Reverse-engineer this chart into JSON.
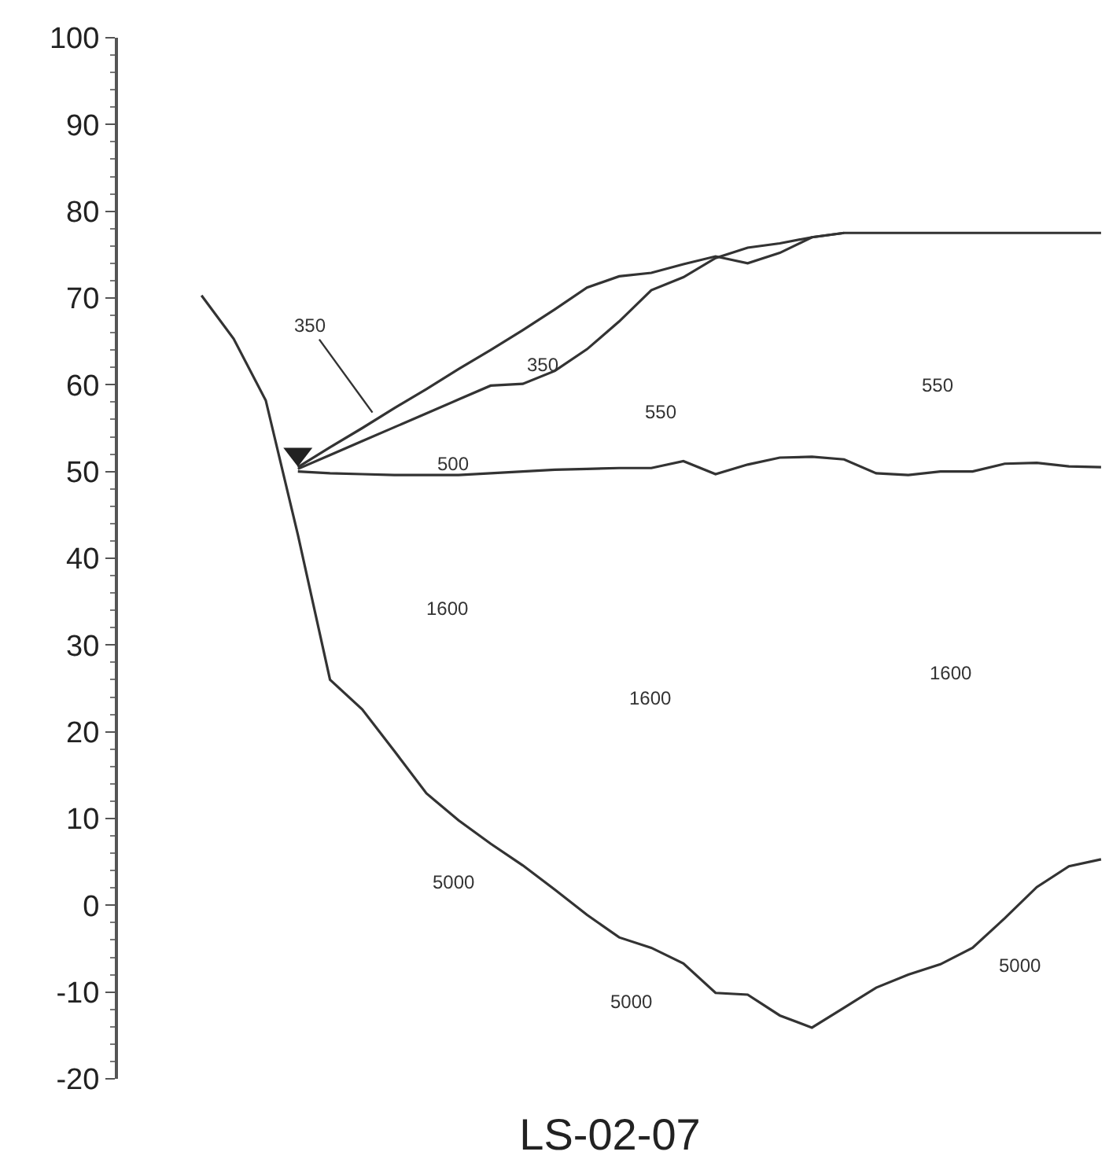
{
  "chart_data": {
    "type": "line",
    "title": "LS-02-07",
    "categories": [
      null,
      null,
      null,
      null,
      null,
      null,
      null,
      null,
      null,
      null,
      null,
      null,
      null,
      null,
      null,
      null,
      null,
      null,
      null,
      null,
      null,
      null,
      null,
      null,
      null,
      null,
      null,
      null,
      null
    ],
    "series": [
      {
        "color": "#333333",
        "values": [
          70.3,
          65.3,
          58.2,
          42.7,
          26,
          22.6,
          17.8,
          12.9,
          9.8,
          7.1,
          4.6,
          1.8,
          -1.1,
          -3.7,
          -4.9,
          -6.7,
          -10.1,
          -10.3,
          -12.7,
          -14.1,
          -11.8,
          -9.5,
          -8.0,
          -6.8,
          -4.9,
          -1.5,
          2.1,
          4.5,
          5.3
        ]
      },
      {
        "color": "#333333",
        "values": [
          null,
          null,
          null,
          50,
          49.8,
          49.7,
          49.6,
          49.6,
          49.6,
          49.8,
          50,
          50.2,
          50.3,
          50.4,
          50.4,
          51.2,
          49.7,
          50.8,
          51.6,
          51.7,
          51.4,
          49.8,
          49.6,
          50,
          50,
          50.9,
          51,
          50.6,
          50.5
        ]
      },
      {
        "color": "#333333",
        "values": [
          null,
          null,
          null,
          50.5,
          52.8,
          55.0,
          57.3,
          59.5,
          61.8,
          64.0,
          66.3,
          68.7,
          71.2,
          72.5,
          72.9,
          73.9,
          74.8,
          74.0,
          75.2,
          77.0,
          77.5,
          77.5,
          77.5,
          77.5,
          77.5,
          77.5,
          77.5,
          77.5,
          77.5
        ]
      },
      {
        "color": "#333333",
        "values": [
          null,
          null,
          null,
          50.3,
          51.9,
          53.5,
          55.1,
          56.7,
          58.3,
          59.9,
          60.1,
          61.6,
          64.1,
          67.3,
          70.9,
          72.4,
          74.6,
          75.8,
          76.3,
          77.0,
          77.5,
          null,
          null,
          null,
          null,
          null,
          null,
          null,
          null
        ]
      },
      {
        "type": "scatter",
        "marker": "triangle",
        "color": "#222222",
        "values": [
          null,
          null,
          null,
          52,
          null,
          null,
          null,
          null,
          null,
          null,
          null,
          null,
          null,
          null,
          null,
          null,
          null,
          null,
          null,
          null,
          null,
          null,
          null,
          null,
          null,
          null,
          null,
          null,
          null
        ]
      }
    ],
    "annotations": [
      "350",
      "350",
      "500",
      "550",
      "550",
      "1600",
      "1600",
      "1600",
      "5000",
      "5000",
      "5000"
    ],
    "ylim": [
      -20,
      100
    ],
    "yticks": [
      -20,
      -10,
      0,
      10,
      20,
      30,
      40,
      50,
      60,
      70,
      80,
      90,
      100
    ],
    "grid": false,
    "marker": "none",
    "line_style": "solid"
  }
}
